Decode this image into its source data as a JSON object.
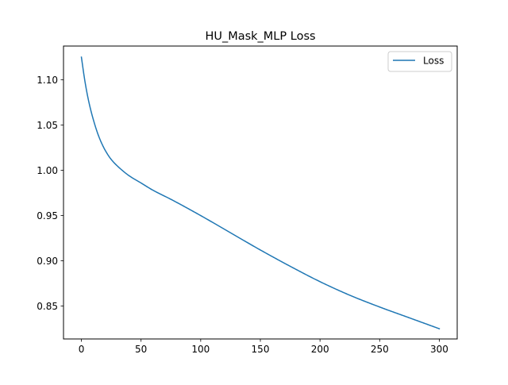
{
  "chart_data": {
    "type": "line",
    "title": "HU_Mask_MLP Loss",
    "xlabel": "",
    "ylabel": "",
    "xlim": [
      -15,
      315
    ],
    "ylim": [
      0.8137,
      1.1373
    ],
    "xticks": [
      0,
      50,
      100,
      150,
      200,
      250,
      300
    ],
    "yticks": [
      0.85,
      0.9,
      0.95,
      1.0,
      1.05,
      1.1
    ],
    "xtick_labels": [
      "0",
      "50",
      "100",
      "150",
      "200",
      "250",
      "300"
    ],
    "ytick_labels": [
      "0.85",
      "0.90",
      "0.95",
      "1.00",
      "1.05",
      "1.10"
    ],
    "grid": false,
    "legend_position": "top-right",
    "series": [
      {
        "name": "Loss",
        "color": "#1f77b4",
        "x": [
          0,
          3,
          6,
          10,
          15,
          20,
          25,
          30,
          40,
          50,
          60,
          75,
          100,
          125,
          150,
          175,
          200,
          225,
          250,
          275,
          300
        ],
        "y": [
          1.125,
          1.098,
          1.077,
          1.056,
          1.036,
          1.022,
          1.012,
          1.005,
          0.994,
          0.986,
          0.978,
          0.968,
          0.95,
          0.931,
          0.912,
          0.894,
          0.877,
          0.862,
          0.849,
          0.837,
          0.825
        ]
      }
    ]
  }
}
